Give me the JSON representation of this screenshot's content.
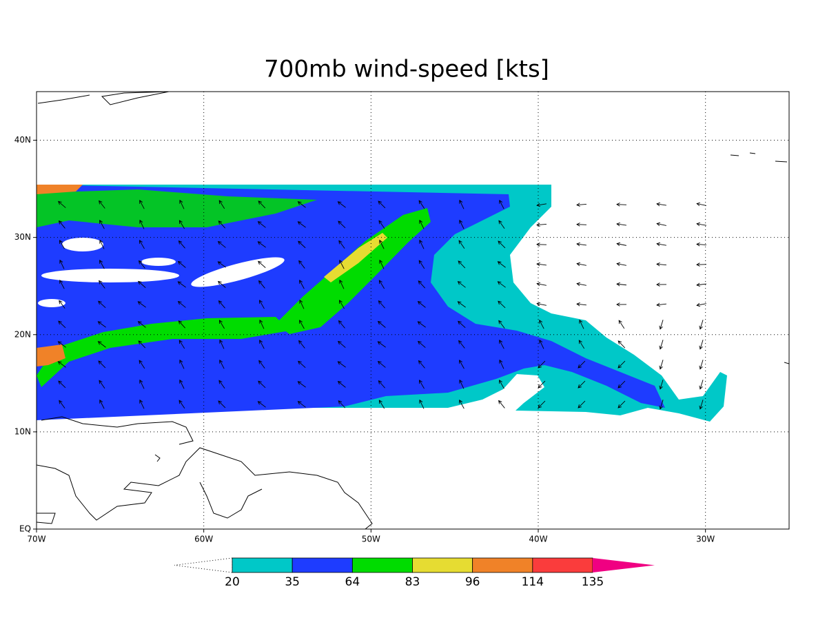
{
  "title": "700mb wind-speed [kts]",
  "map": {
    "xlim": [
      -70,
      -25
    ],
    "ylim": [
      0,
      45
    ],
    "grid": true,
    "xticks": [
      {
        "value": -70,
        "label": "70W"
      },
      {
        "value": -60,
        "label": "60W"
      },
      {
        "value": -50,
        "label": "50W"
      },
      {
        "value": -40,
        "label": "40W"
      },
      {
        "value": -30,
        "label": "30W"
      }
    ],
    "yticks": [
      {
        "value": 0,
        "label": "EQ"
      },
      {
        "value": 10,
        "label": "10N"
      },
      {
        "value": 20,
        "label": "20N"
      },
      {
        "value": 30,
        "label": "30N"
      },
      {
        "value": 40,
        "label": "40N"
      }
    ]
  },
  "colorbar": {
    "levels": [
      20,
      35,
      64,
      83,
      96,
      114,
      135
    ],
    "colors": [
      "#ffffff",
      "#00c8c8",
      "#1e3cff",
      "#00dc00",
      "#e6dc32",
      "#f08228",
      "#fa3c3c",
      "#f00082"
    ]
  }
}
